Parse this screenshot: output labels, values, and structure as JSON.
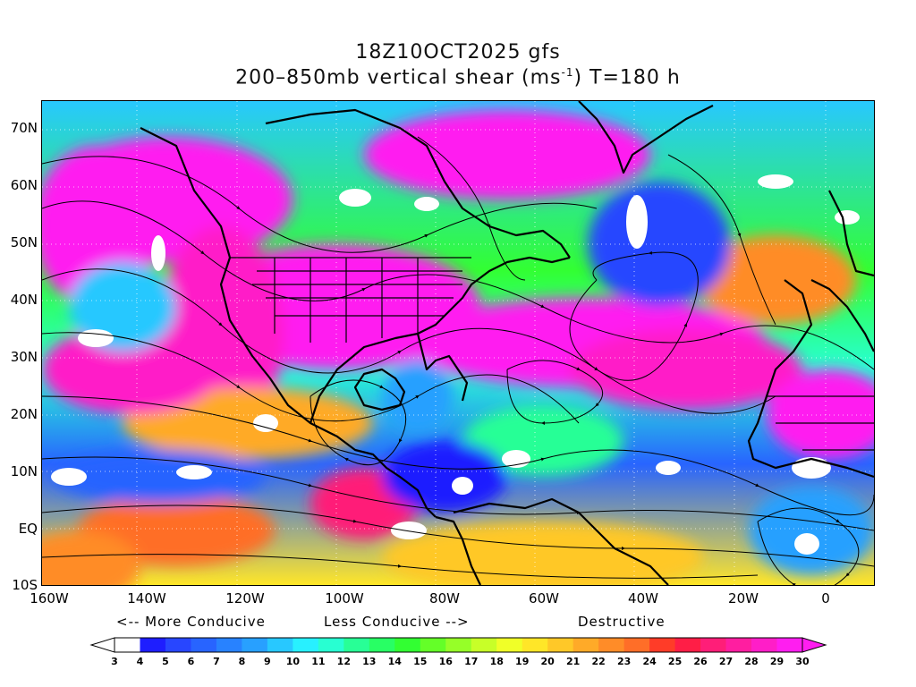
{
  "title": {
    "line1": "18Z10OCT2025 gfs",
    "line2_prefix": "200–850mb vertical shear (ms",
    "line2_sup": "-1",
    "line2_suffix": ") T=180 h"
  },
  "axes": {
    "lat_labels": [
      "70N",
      "60N",
      "50N",
      "40N",
      "30N",
      "20N",
      "10N",
      "EQ",
      "10S"
    ],
    "lon_labels": [
      "160W",
      "140W",
      "120W",
      "100W",
      "80W",
      "60W",
      "40W",
      "20W",
      "0"
    ]
  },
  "colorbar": {
    "descriptors": {
      "more": "<-- More Conducive",
      "less": "Less Conducive -->",
      "destructive": "Destructive"
    },
    "labels": [
      "3",
      "4",
      "5",
      "6",
      "7",
      "8",
      "9",
      "10",
      "11",
      "12",
      "13",
      "14",
      "15",
      "16",
      "17",
      "18",
      "19",
      "20",
      "21",
      "22",
      "23",
      "24",
      "25",
      "26",
      "27",
      "28",
      "29",
      "30"
    ],
    "colors": [
      "#ffffff",
      "#1e1eff",
      "#2846ff",
      "#2864ff",
      "#2882ff",
      "#28a0ff",
      "#28c8ff",
      "#28f0ff",
      "#28ffd2",
      "#28ff96",
      "#28ff64",
      "#32ff32",
      "#64ff28",
      "#96ff28",
      "#c8ff28",
      "#f0ff28",
      "#ffe628",
      "#ffc828",
      "#ffaa28",
      "#ff8c28",
      "#ff6e28",
      "#ff3c28",
      "#ff1e46",
      "#ff1e78",
      "#ff1ea0",
      "#ff1ec8",
      "#ff1ef0"
    ]
  }
}
